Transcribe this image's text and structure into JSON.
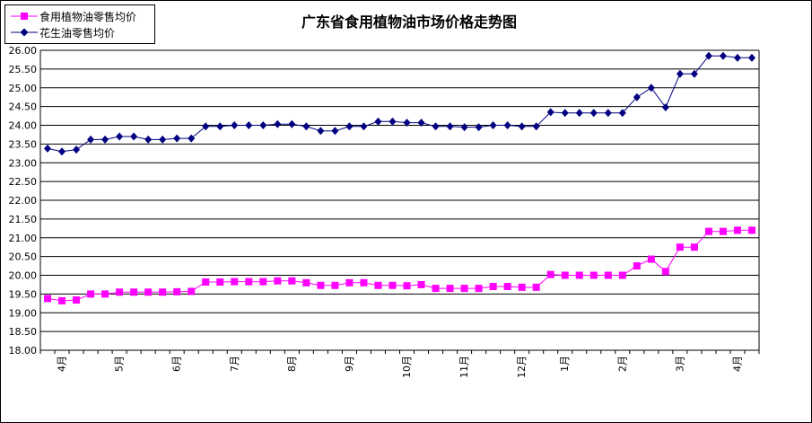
{
  "chart_data": {
    "type": "line",
    "title": "广东省食用植物油市场价格走势图",
    "ylim": [
      18.0,
      26.0
    ],
    "ystep": 0.5,
    "grid": true,
    "legend_position": "top-left",
    "month_labels": [
      "4月",
      "5月",
      "6月",
      "7月",
      "8月",
      "9月",
      "10月",
      "11月",
      "12月",
      "1月",
      "2月",
      "3月",
      "4月"
    ],
    "month_label_positions": [
      1,
      5,
      9,
      13,
      17,
      21,
      25,
      29,
      33,
      36,
      40,
      44,
      48
    ],
    "series": [
      {
        "name": "食用植物油零售均价",
        "color": "#ff00ff",
        "marker": "square",
        "values": [
          19.38,
          19.32,
          19.34,
          19.5,
          19.5,
          19.55,
          19.55,
          19.55,
          19.55,
          19.56,
          19.57,
          19.82,
          19.82,
          19.83,
          19.83,
          19.83,
          19.85,
          19.85,
          19.8,
          19.73,
          19.73,
          19.8,
          19.8,
          19.73,
          19.73,
          19.72,
          19.75,
          19.65,
          19.65,
          19.65,
          19.65,
          19.7,
          19.7,
          19.68,
          19.68,
          20.02,
          20.0,
          20.0,
          20.0,
          20.0,
          20.0,
          20.25,
          20.43,
          20.1,
          20.75,
          20.75,
          21.17,
          21.17,
          21.2,
          21.2
        ]
      },
      {
        "name": "花生油零售均价",
        "color": "#000080",
        "marker": "diamond",
        "values": [
          23.38,
          23.3,
          23.35,
          23.62,
          23.62,
          23.7,
          23.7,
          23.62,
          23.62,
          23.65,
          23.65,
          23.97,
          23.97,
          24.0,
          24.0,
          24.0,
          24.03,
          24.03,
          23.97,
          23.85,
          23.85,
          23.97,
          23.97,
          24.1,
          24.1,
          24.07,
          24.07,
          23.97,
          23.97,
          23.95,
          23.95,
          24.0,
          24.0,
          23.97,
          23.97,
          24.35,
          24.33,
          24.33,
          24.33,
          24.33,
          24.33,
          24.75,
          25.0,
          24.48,
          25.37,
          25.37,
          25.85,
          25.85,
          25.8,
          25.8
        ]
      }
    ]
  }
}
